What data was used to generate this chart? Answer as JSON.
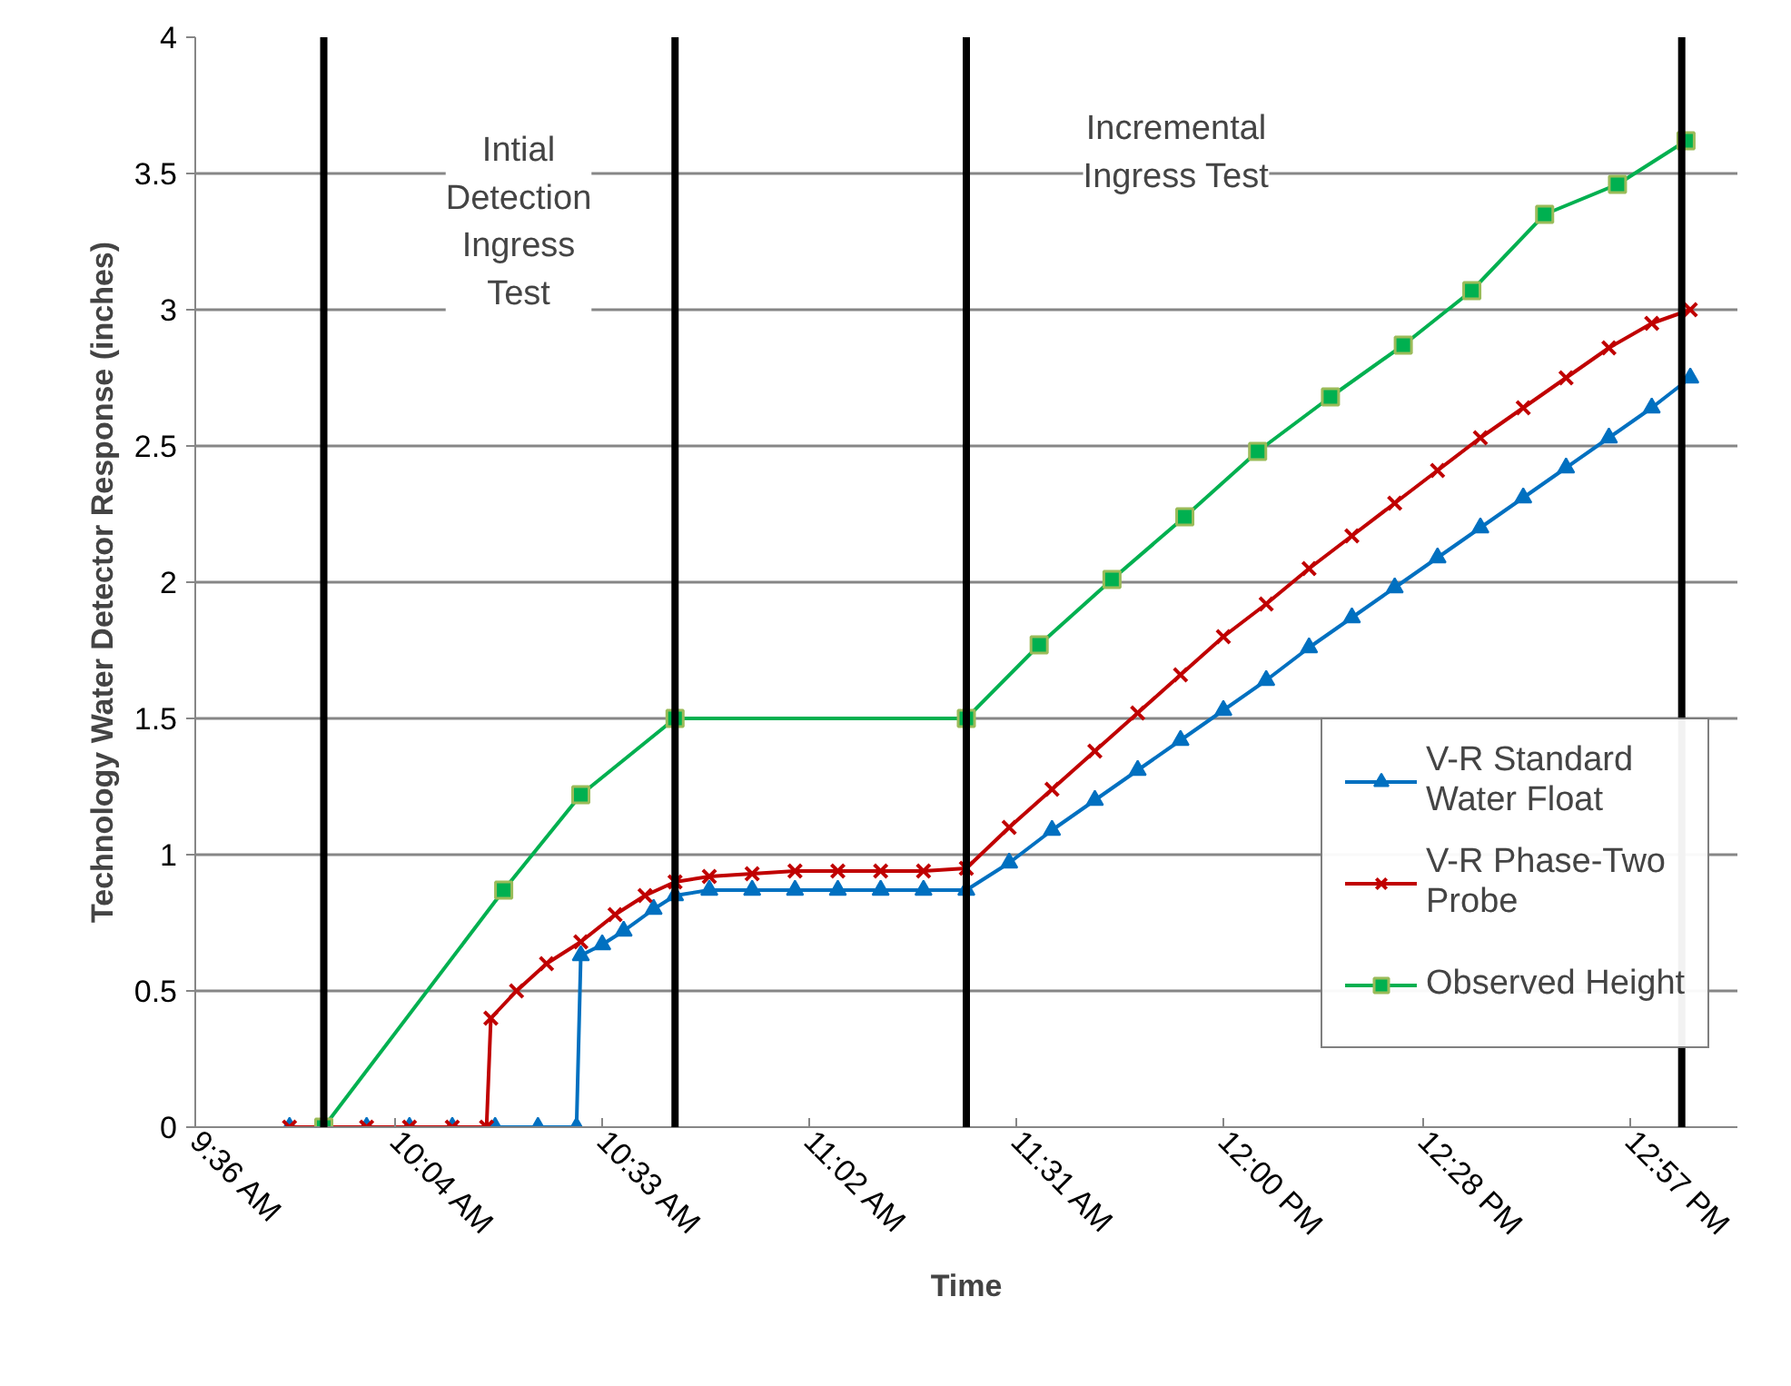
{
  "chart_data": {
    "type": "line",
    "xlabel": "Time",
    "ylabel": "Technology Water Detector Response (inches)",
    "xlim": [
      9.6,
      13.2
    ],
    "xticks": [
      {
        "value": 9.6,
        "label": "9:36 AM"
      },
      {
        "value": 10.0667,
        "label": "10:04 AM"
      },
      {
        "value": 10.55,
        "label": "10:33 AM"
      },
      {
        "value": 11.0333,
        "label": "11:02 AM"
      },
      {
        "value": 11.5167,
        "label": "11:31 AM"
      },
      {
        "value": 12.0,
        "label": "12:00 PM"
      },
      {
        "value": 12.4667,
        "label": "12:28 PM"
      },
      {
        "value": 12.95,
        "label": "12:57 PM"
      }
    ],
    "ylim": [
      0,
      4
    ],
    "yticks": [
      0,
      0.5,
      1,
      1.5,
      2,
      2.5,
      3,
      3.5,
      4
    ],
    "grid": "y",
    "legend": "bottom right",
    "series": [
      {
        "name": "V-R Standard Water Float",
        "color": "#0070c0",
        "marker": "triangle",
        "x": [
          9.82,
          9.9,
          10.0,
          10.1,
          10.2,
          10.3,
          10.4,
          10.49,
          10.5,
          10.55,
          10.6,
          10.67,
          10.72,
          10.8,
          10.9,
          11.0,
          11.1,
          11.2,
          11.3,
          11.4,
          11.5,
          11.6,
          11.7,
          11.8,
          11.9,
          12.0,
          12.1,
          12.2,
          12.3,
          12.4,
          12.5,
          12.6,
          12.7,
          12.8,
          12.9,
          13.0,
          13.09
        ],
        "values": [
          0,
          0,
          0,
          0,
          0,
          0,
          0,
          0,
          0.63,
          0.67,
          0.72,
          0.8,
          0.85,
          0.87,
          0.87,
          0.87,
          0.87,
          0.87,
          0.87,
          0.87,
          0.97,
          1.09,
          1.2,
          1.31,
          1.42,
          1.53,
          1.64,
          1.76,
          1.87,
          1.98,
          2.09,
          2.2,
          2.31,
          2.42,
          2.53,
          2.64,
          2.75
        ]
      },
      {
        "name": "V-R Phase-Two Probe",
        "color": "#c00000",
        "marker": "cross",
        "x": [
          9.82,
          9.9,
          10.0,
          10.1,
          10.2,
          10.28,
          10.29,
          10.35,
          10.42,
          10.5,
          10.58,
          10.65,
          10.72,
          10.8,
          10.9,
          11.0,
          11.1,
          11.2,
          11.3,
          11.4,
          11.5,
          11.6,
          11.7,
          11.8,
          11.9,
          12.0,
          12.1,
          12.2,
          12.3,
          12.4,
          12.5,
          12.6,
          12.7,
          12.8,
          12.9,
          13.0,
          13.09
        ],
        "values": [
          0,
          0,
          0,
          0,
          0,
          0,
          0.4,
          0.5,
          0.6,
          0.68,
          0.78,
          0.85,
          0.9,
          0.92,
          0.93,
          0.94,
          0.94,
          0.94,
          0.94,
          0.95,
          1.1,
          1.24,
          1.38,
          1.52,
          1.66,
          1.8,
          1.92,
          2.05,
          2.17,
          2.29,
          2.41,
          2.53,
          2.64,
          2.75,
          2.86,
          2.95,
          3.0
        ]
      },
      {
        "name": "Observed Height",
        "color": "#00b050",
        "marker": "square",
        "x": [
          9.9,
          10.32,
          10.5,
          10.72,
          11.4,
          11.57,
          11.74,
          11.91,
          12.08,
          12.25,
          12.42,
          12.58,
          12.75,
          12.92,
          13.08
        ],
        "values": [
          0,
          0.87,
          1.22,
          1.5,
          1.5,
          1.77,
          2.01,
          2.24,
          2.48,
          2.68,
          2.87,
          3.07,
          3.35,
          3.46,
          3.62
        ]
      }
    ],
    "ref_lines": [
      {
        "axis": "x",
        "value": 9.9,
        "color": "#000000"
      },
      {
        "axis": "x",
        "value": 10.72,
        "color": "#000000"
      },
      {
        "axis": "x",
        "value": 11.4,
        "color": "#000000"
      },
      {
        "axis": "x",
        "value": 13.07,
        "color": "#000000"
      }
    ],
    "annotations": [
      "Intial\nDetection\nIngress\nTest",
      "Incremental\nIngress Test"
    ]
  }
}
